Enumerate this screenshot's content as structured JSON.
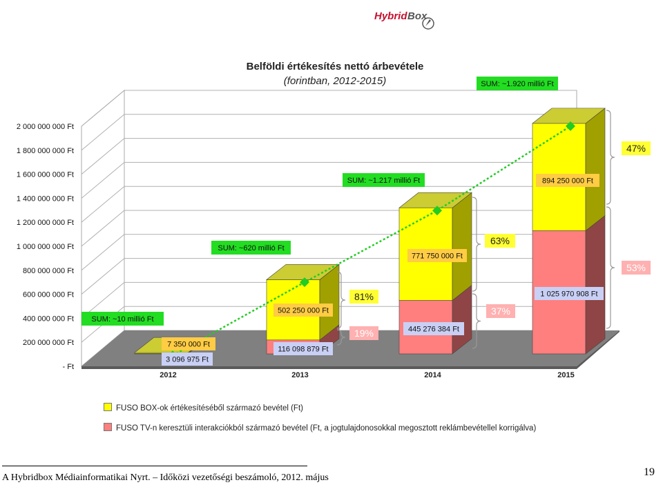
{
  "logo": {
    "text_1": "Hybrid",
    "text_2": "Box"
  },
  "chart_data": {
    "type": "bar",
    "subtype": "stacked-3d",
    "title": "Belföldi értékesítés nettó árbevétele",
    "subtitle": "(forintban, 2012-2015)",
    "categories": [
      "2012",
      "2013",
      "2014",
      "2015"
    ],
    "ylim": [
      0,
      2000000000
    ],
    "yticks": [
      "- Ft",
      "200 000 000 Ft",
      "400 000 000 Ft",
      "600 000 000 Ft",
      "800 000 000 Ft",
      "1 000 000 000 Ft",
      "1 200 000 000 Ft",
      "1 400 000 000 Ft",
      "1 600 000 000 Ft",
      "1 800 000 000 Ft",
      "2 000 000 000 Ft"
    ],
    "grid": true,
    "legend_position": "bottom",
    "series": [
      {
        "name": "FUSO TV-n keresztüli interakciókból származó bevétel (Ft, a jogtulajdonosokkal megosztott reklámbevétellel korrigálva)",
        "color": "#ff7f7f",
        "values": [
          3096975,
          116098879,
          445276384,
          1025970908
        ],
        "labels": [
          "3 096 975 Ft",
          "116 098 879 Ft",
          "445 276 384 Ft",
          "1 025 970 908 Ft"
        ]
      },
      {
        "name": "FUSO BOX-ok értékesítéséből származó bevétel (Ft)",
        "color": "#ffff00",
        "values": [
          7350000,
          502250000,
          771750000,
          894250000
        ],
        "labels": [
          "7 350 000 Ft",
          "502 250 000 Ft",
          "771 750 000 Ft",
          "894 250 000 Ft"
        ]
      }
    ],
    "sum_line": {
      "color": "#22cc22",
      "values": [
        10000000,
        620000000,
        1217000000,
        1920000000
      ],
      "labels": [
        "SUM: ~10 millió Ft",
        "SUM: ~620 millió Ft",
        "SUM: ~1.217 millió Ft",
        "SUM: ~1.920 millió Ft"
      ]
    },
    "percent_labels": [
      {
        "category": "2013",
        "box": "81%",
        "tv": "19%"
      },
      {
        "category": "2014",
        "box": "63%",
        "tv": "37%"
      },
      {
        "category": "2015",
        "box": "47%",
        "tv": "53%"
      }
    ]
  },
  "footer": {
    "text": "A Hybridbox Médiainformatikai Nyrt. – Időközi vezetőségi beszámoló, 2012. május",
    "page": "19"
  }
}
